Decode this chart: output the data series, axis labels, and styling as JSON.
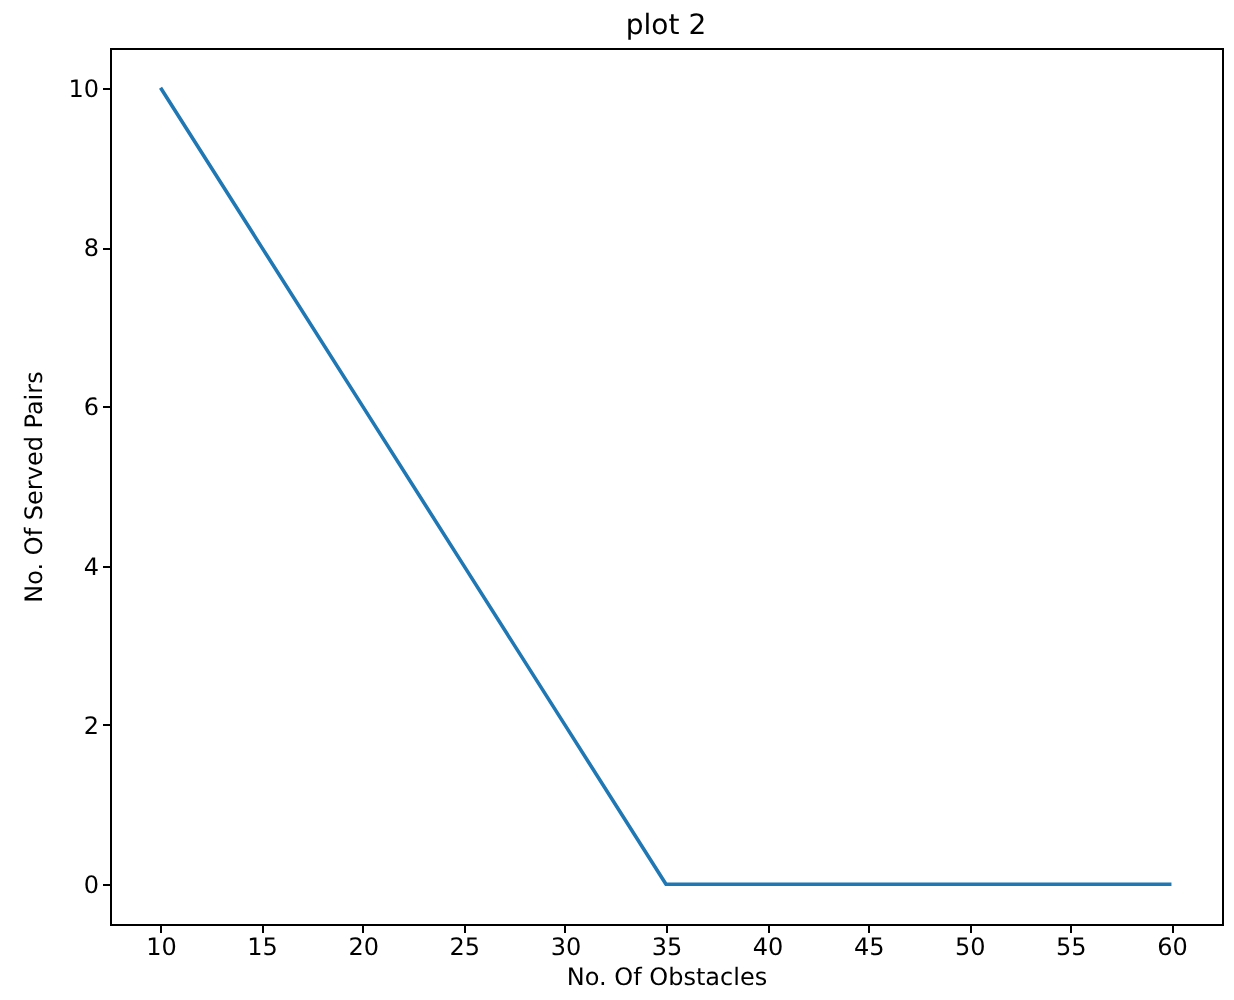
{
  "chart_data": {
    "type": "line",
    "title": "plot 2",
    "xlabel": "No. Of Obstacles",
    "ylabel": "No. Of Served Pairs",
    "x": [
      10,
      15,
      20,
      25,
      30,
      35,
      40,
      45,
      50,
      55,
      60
    ],
    "series": [
      {
        "color": "#1f77b4",
        "values": [
          10,
          8,
          6,
          4,
          2,
          0,
          0,
          0,
          0,
          0,
          0
        ]
      }
    ],
    "xlim": [
      7.5,
      62.5
    ],
    "ylim": [
      -0.5,
      10.5
    ],
    "xticks": [
      10,
      15,
      20,
      25,
      30,
      35,
      40,
      45,
      50,
      55,
      60
    ],
    "yticks": [
      0,
      2,
      4,
      6,
      8,
      10
    ],
    "grid": false,
    "legend": false,
    "marker": "none",
    "line_style": "solid"
  }
}
